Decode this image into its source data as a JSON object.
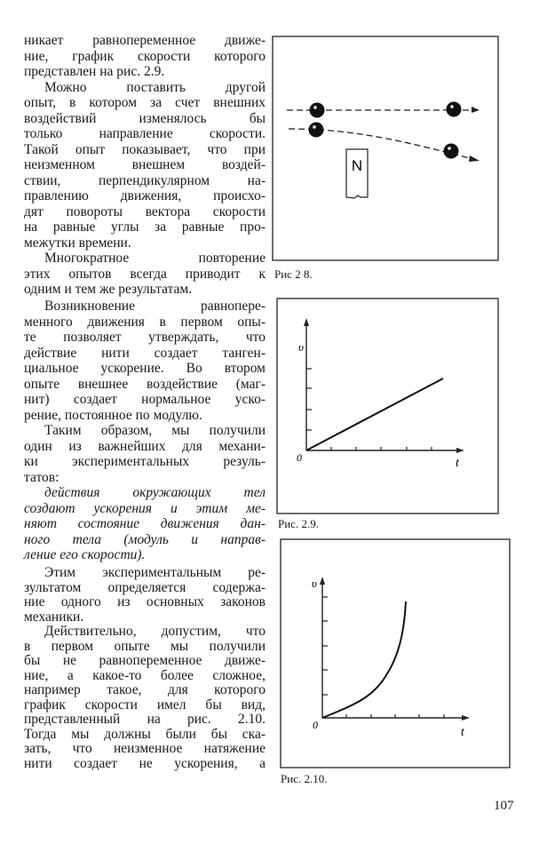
{
  "blocks": [
    {
      "lines": [
        {
          "text": "никает равнопеременное движе-"
        },
        {
          "text": "ние, график скорости которого"
        },
        {
          "text": "представлен на рис. 2.9.",
          "last": true
        },
        {
          "text": "Можно поставить другой",
          "indent": true
        },
        {
          "text": "опыт, в котором за счет внешних"
        },
        {
          "text": "воздействий изменялось бы"
        },
        {
          "text": "только направление скорости."
        },
        {
          "text": "Такой опыт показывает, что при"
        },
        {
          "text": "неизменном внешнем воздей-"
        },
        {
          "text": "ствии, перпендикулярном на-"
        },
        {
          "text": "правлению движения, происхо-"
        },
        {
          "text": "дят повороты вектора скорости"
        },
        {
          "text": "на равные углы за равные про-"
        },
        {
          "text": "межутки времени.",
          "last": true
        },
        {
          "text": "Многократное повторение",
          "indent": true
        },
        {
          "text": "этих опытов всегда приводит к"
        },
        {
          "text": "одним и тем же результатам.",
          "last": true
        }
      ]
    },
    {
      "lines": [
        {
          "text": "Возникновение равнопере-",
          "indent": true
        },
        {
          "text": "менного движения в первом опы-"
        },
        {
          "text": "те позволяет утверждать, что"
        },
        {
          "text": "действие нити создает танген-"
        },
        {
          "text": "циальное ускорение. Во втором"
        },
        {
          "text": "опыте внешнее воздействие (маг-"
        },
        {
          "text": "нит) создает нормальное уско-"
        },
        {
          "text": "рение, постоянное по модулю.",
          "last": true
        },
        {
          "text": "Таким образом, мы получили",
          "indent": true
        },
        {
          "text": "один из важнейших для механи-"
        },
        {
          "text": "ки экспериментальных резуль-"
        },
        {
          "text": "татов:",
          "last": true
        },
        {
          "text": "действия окружающих тел",
          "indent": true,
          "italic": true
        },
        {
          "text": "создают ускорения и этим ме-",
          "italic": true
        },
        {
          "text": "няют состояние движения дан-",
          "italic": true
        },
        {
          "text": "ного тела (модуль и направ-",
          "italic": true
        },
        {
          "text": "ление его скорости).",
          "italic": true,
          "last": true
        }
      ]
    },
    {
      "lines": [
        {
          "text": "Этим экспериментальным ре-",
          "indent": true
        },
        {
          "text": "зультатом определяется содержа-"
        },
        {
          "text": "ние одного из основных законов"
        },
        {
          "text": "механики.",
          "last": true
        },
        {
          "text": "Действительно, допустим, что",
          "indent": true
        },
        {
          "text": "в первом опыте мы получили"
        },
        {
          "text": "бы не равнопеременное движе-"
        },
        {
          "text": "ние, а какое-то более сложное,"
        },
        {
          "text": "например такое, для которого"
        },
        {
          "text": "график скорости имел бы вид,"
        },
        {
          "text": "представленный на рис. 2.10."
        },
        {
          "text": "Тогда мы должны были бы ска-"
        },
        {
          "text": "зать, что неизменное натяжение"
        },
        {
          "text": "нити создает не ускорения, а"
        }
      ]
    }
  ],
  "figures": {
    "fig28": {
      "caption": "Рис 2 8.",
      "magnet_label": "N"
    },
    "fig29": {
      "caption": "Рис. 2.9.",
      "y_label": "υ",
      "x_label": "t",
      "origin_label": "0"
    },
    "fig210": {
      "caption": "Рис. 2.10.",
      "y_label": "υ",
      "x_label": "t",
      "origin_label": "0"
    }
  },
  "page_number": "107"
}
